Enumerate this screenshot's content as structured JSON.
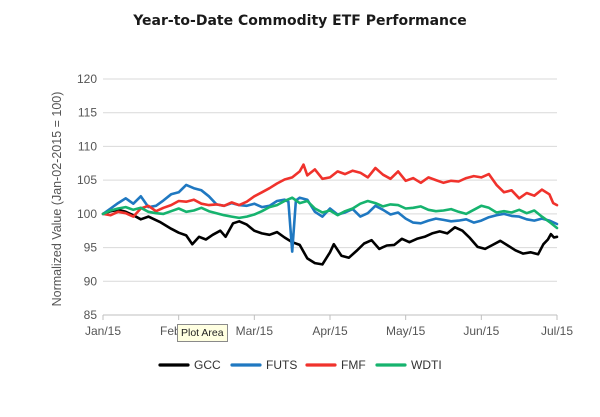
{
  "chart_data": {
    "type": "line",
    "title": "Year-to-Date Commodity ETF Performance",
    "xlabel": "",
    "ylabel": "Normalized Value (Jan-02-2015 = 100)",
    "ylim": [
      85,
      120
    ],
    "yticks": [
      85,
      90,
      95,
      100,
      105,
      110,
      115,
      120
    ],
    "xticks": [
      "Jan/15",
      "Feb/15",
      "Mar/15",
      "Apr/15",
      "May/15",
      "Jun/15",
      "Jul/15"
    ],
    "grid": "horizontal",
    "legend_position": "bottom",
    "x_note": "x values are months elapsed since Jan/15 tick (0 = Jan/15, 6 = Jul/15)",
    "series": [
      {
        "name": "GCC",
        "color": "#000000",
        "points": [
          [
            0,
            100
          ],
          [
            0.1,
            100.4
          ],
          [
            0.2,
            100.6
          ],
          [
            0.3,
            100.3
          ],
          [
            0.4,
            99.8
          ],
          [
            0.5,
            99.2
          ],
          [
            0.6,
            99.6
          ],
          [
            0.75,
            98.8
          ],
          [
            0.9,
            97.8
          ],
          [
            1.0,
            97.2
          ],
          [
            1.1,
            96.8
          ],
          [
            1.18,
            95.5
          ],
          [
            1.27,
            96.6
          ],
          [
            1.36,
            96.2
          ],
          [
            1.45,
            96.9
          ],
          [
            1.55,
            97.5
          ],
          [
            1.62,
            96.6
          ],
          [
            1.72,
            98.6
          ],
          [
            1.8,
            98.9
          ],
          [
            1.9,
            98.4
          ],
          [
            2.0,
            97.5
          ],
          [
            2.1,
            97.1
          ],
          [
            2.2,
            96.9
          ],
          [
            2.3,
            97.3
          ],
          [
            2.4,
            96.5
          ],
          [
            2.5,
            95.8
          ],
          [
            2.6,
            95.4
          ],
          [
            2.7,
            93.4
          ],
          [
            2.8,
            92.7
          ],
          [
            2.9,
            92.5
          ],
          [
            3.0,
            94.3
          ],
          [
            3.05,
            95.5
          ],
          [
            3.15,
            93.8
          ],
          [
            3.25,
            93.5
          ],
          [
            3.35,
            94.5
          ],
          [
            3.45,
            95.6
          ],
          [
            3.55,
            96.1
          ],
          [
            3.65,
            94.8
          ],
          [
            3.75,
            95.3
          ],
          [
            3.85,
            95.4
          ],
          [
            3.95,
            96.3
          ],
          [
            4.05,
            95.8
          ],
          [
            4.15,
            96.3
          ],
          [
            4.25,
            96.6
          ],
          [
            4.35,
            97.1
          ],
          [
            4.45,
            97.4
          ],
          [
            4.55,
            97.1
          ],
          [
            4.65,
            98.0
          ],
          [
            4.75,
            97.5
          ],
          [
            4.85,
            96.4
          ],
          [
            4.95,
            95.1
          ],
          [
            5.05,
            94.8
          ],
          [
            5.15,
            95.4
          ],
          [
            5.25,
            96.0
          ],
          [
            5.35,
            95.3
          ],
          [
            5.45,
            94.6
          ],
          [
            5.55,
            94.1
          ],
          [
            5.65,
            94.3
          ],
          [
            5.75,
            94.0
          ],
          [
            5.82,
            95.5
          ],
          [
            5.88,
            96.2
          ],
          [
            5.92,
            97.0
          ],
          [
            5.96,
            96.5
          ],
          [
            6.0,
            96.6
          ]
        ]
      },
      {
        "name": "FUTS",
        "color": "#1f78c1",
        "points": [
          [
            0,
            100
          ],
          [
            0.1,
            100.8
          ],
          [
            0.2,
            101.6
          ],
          [
            0.3,
            102.3
          ],
          [
            0.4,
            101.5
          ],
          [
            0.5,
            102.6
          ],
          [
            0.6,
            101.0
          ],
          [
            0.7,
            101.2
          ],
          [
            0.8,
            102.0
          ],
          [
            0.9,
            102.9
          ],
          [
            1.0,
            103.2
          ],
          [
            1.1,
            104.3
          ],
          [
            1.2,
            103.8
          ],
          [
            1.3,
            103.5
          ],
          [
            1.4,
            102.6
          ],
          [
            1.5,
            101.4
          ],
          [
            1.6,
            101.2
          ],
          [
            1.7,
            101.6
          ],
          [
            1.8,
            101.3
          ],
          [
            1.9,
            101.2
          ],
          [
            2.0,
            101.5
          ],
          [
            2.1,
            101.0
          ],
          [
            2.2,
            101.2
          ],
          [
            2.3,
            101.9
          ],
          [
            2.4,
            102.1
          ],
          [
            2.45,
            101.8
          ],
          [
            2.5,
            94.4
          ],
          [
            2.55,
            102.0
          ],
          [
            2.6,
            102.4
          ],
          [
            2.7,
            102.1
          ],
          [
            2.8,
            100.3
          ],
          [
            2.9,
            99.6
          ],
          [
            3.0,
            100.8
          ],
          [
            3.1,
            99.9
          ],
          [
            3.2,
            100.2
          ],
          [
            3.3,
            100.7
          ],
          [
            3.4,
            99.6
          ],
          [
            3.5,
            100.1
          ],
          [
            3.6,
            101.2
          ],
          [
            3.7,
            100.6
          ],
          [
            3.8,
            99.9
          ],
          [
            3.9,
            100.2
          ],
          [
            4.0,
            99.3
          ],
          [
            4.1,
            98.7
          ],
          [
            4.2,
            98.6
          ],
          [
            4.3,
            99.0
          ],
          [
            4.4,
            99.3
          ],
          [
            4.5,
            99.1
          ],
          [
            4.6,
            98.9
          ],
          [
            4.7,
            99.0
          ],
          [
            4.8,
            99.2
          ],
          [
            4.9,
            98.7
          ],
          [
            5.0,
            99.0
          ],
          [
            5.1,
            99.5
          ],
          [
            5.2,
            99.8
          ],
          [
            5.3,
            100.0
          ],
          [
            5.4,
            99.7
          ],
          [
            5.5,
            99.6
          ],
          [
            5.6,
            99.2
          ],
          [
            5.7,
            99.0
          ],
          [
            5.8,
            99.3
          ],
          [
            5.9,
            99.0
          ],
          [
            6.0,
            98.5
          ]
        ]
      },
      {
        "name": "FMF",
        "color": "#f0322c",
        "points": [
          [
            0,
            100
          ],
          [
            0.1,
            99.8
          ],
          [
            0.2,
            100.3
          ],
          [
            0.3,
            100.1
          ],
          [
            0.4,
            99.6
          ],
          [
            0.5,
            100.8
          ],
          [
            0.6,
            101.2
          ],
          [
            0.7,
            100.4
          ],
          [
            0.8,
            100.9
          ],
          [
            0.9,
            101.3
          ],
          [
            1.0,
            101.9
          ],
          [
            1.1,
            101.8
          ],
          [
            1.2,
            102.1
          ],
          [
            1.3,
            101.5
          ],
          [
            1.4,
            101.3
          ],
          [
            1.5,
            101.4
          ],
          [
            1.6,
            101.2
          ],
          [
            1.7,
            101.7
          ],
          [
            1.8,
            101.3
          ],
          [
            1.9,
            101.8
          ],
          [
            2.0,
            102.6
          ],
          [
            2.1,
            103.2
          ],
          [
            2.2,
            103.8
          ],
          [
            2.3,
            104.5
          ],
          [
            2.4,
            105.1
          ],
          [
            2.5,
            105.4
          ],
          [
            2.6,
            106.3
          ],
          [
            2.65,
            107.3
          ],
          [
            2.7,
            105.7
          ],
          [
            2.8,
            106.6
          ],
          [
            2.9,
            105.2
          ],
          [
            3.0,
            105.4
          ],
          [
            3.1,
            106.3
          ],
          [
            3.2,
            105.9
          ],
          [
            3.3,
            106.4
          ],
          [
            3.4,
            106.1
          ],
          [
            3.5,
            105.4
          ],
          [
            3.6,
            106.8
          ],
          [
            3.7,
            105.8
          ],
          [
            3.8,
            105.2
          ],
          [
            3.9,
            106.3
          ],
          [
            4.0,
            104.9
          ],
          [
            4.1,
            105.3
          ],
          [
            4.2,
            104.6
          ],
          [
            4.3,
            105.4
          ],
          [
            4.4,
            105.0
          ],
          [
            4.5,
            104.6
          ],
          [
            4.6,
            104.9
          ],
          [
            4.7,
            104.8
          ],
          [
            4.8,
            105.3
          ],
          [
            4.9,
            105.6
          ],
          [
            5.0,
            105.4
          ],
          [
            5.1,
            105.9
          ],
          [
            5.2,
            104.3
          ],
          [
            5.3,
            103.2
          ],
          [
            5.4,
            103.5
          ],
          [
            5.5,
            102.3
          ],
          [
            5.6,
            103.1
          ],
          [
            5.7,
            102.7
          ],
          [
            5.8,
            103.6
          ],
          [
            5.9,
            102.9
          ],
          [
            5.95,
            101.6
          ],
          [
            6.0,
            101.3
          ]
        ]
      },
      {
        "name": "WDTI",
        "color": "#16b36e",
        "points": [
          [
            0,
            100
          ],
          [
            0.1,
            100.5
          ],
          [
            0.2,
            100.8
          ],
          [
            0.3,
            101.0
          ],
          [
            0.4,
            100.6
          ],
          [
            0.5,
            100.9
          ],
          [
            0.6,
            100.3
          ],
          [
            0.7,
            100.1
          ],
          [
            0.8,
            100.0
          ],
          [
            0.9,
            100.4
          ],
          [
            1.0,
            100.8
          ],
          [
            1.1,
            100.3
          ],
          [
            1.2,
            100.5
          ],
          [
            1.3,
            100.9
          ],
          [
            1.4,
            100.4
          ],
          [
            1.5,
            100.1
          ],
          [
            1.6,
            99.8
          ],
          [
            1.7,
            99.6
          ],
          [
            1.8,
            99.4
          ],
          [
            1.9,
            99.6
          ],
          [
            2.0,
            99.9
          ],
          [
            2.1,
            100.4
          ],
          [
            2.2,
            101.0
          ],
          [
            2.3,
            101.3
          ],
          [
            2.4,
            101.9
          ],
          [
            2.5,
            102.4
          ],
          [
            2.6,
            101.6
          ],
          [
            2.7,
            101.9
          ],
          [
            2.8,
            100.8
          ],
          [
            2.9,
            100.2
          ],
          [
            3.0,
            100.5
          ],
          [
            3.1,
            99.8
          ],
          [
            3.2,
            100.4
          ],
          [
            3.3,
            100.8
          ],
          [
            3.4,
            101.5
          ],
          [
            3.5,
            101.9
          ],
          [
            3.6,
            101.6
          ],
          [
            3.7,
            101.1
          ],
          [
            3.8,
            101.4
          ],
          [
            3.9,
            101.3
          ],
          [
            4.0,
            100.8
          ],
          [
            4.1,
            100.9
          ],
          [
            4.2,
            101.1
          ],
          [
            4.3,
            100.6
          ],
          [
            4.4,
            100.4
          ],
          [
            4.5,
            100.5
          ],
          [
            4.6,
            100.7
          ],
          [
            4.7,
            100.3
          ],
          [
            4.8,
            100.0
          ],
          [
            4.9,
            100.6
          ],
          [
            5.0,
            101.2
          ],
          [
            5.1,
            100.9
          ],
          [
            5.2,
            100.2
          ],
          [
            5.3,
            100.4
          ],
          [
            5.4,
            100.2
          ],
          [
            5.5,
            100.6
          ],
          [
            5.6,
            100.1
          ],
          [
            5.7,
            100.5
          ],
          [
            5.8,
            99.6
          ],
          [
            5.9,
            98.8
          ],
          [
            6.0,
            97.9
          ]
        ]
      }
    ]
  },
  "tooltip": {
    "text": "Plot Area"
  }
}
